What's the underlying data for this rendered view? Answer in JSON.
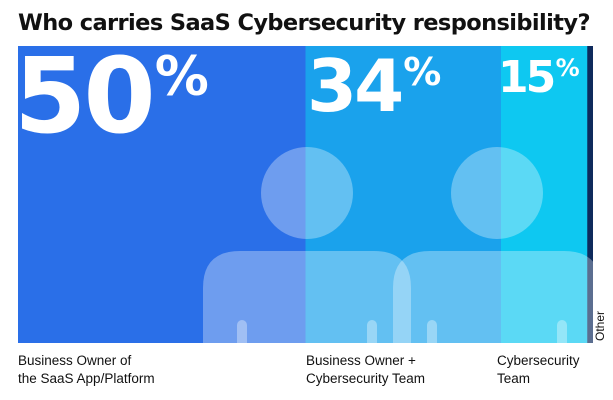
{
  "chart_data": {
    "type": "bar",
    "title": "Who carries SaaS Cybersecurity responsibility?",
    "categories": [
      "Business Owner of\nthe SaaS App/Platform",
      "Business Owner +\nCybersecurity Team",
      "Cybersecurity\nTeam",
      "Other"
    ],
    "values": [
      50,
      34,
      15,
      1
    ],
    "value_labels": [
      "50",
      "34",
      "15",
      ""
    ],
    "unit": "%",
    "colors": [
      "#2a6fe8",
      "#1aa2ec",
      "#0ec8f1",
      "#0e2a5c"
    ],
    "icon": "person-icon"
  }
}
